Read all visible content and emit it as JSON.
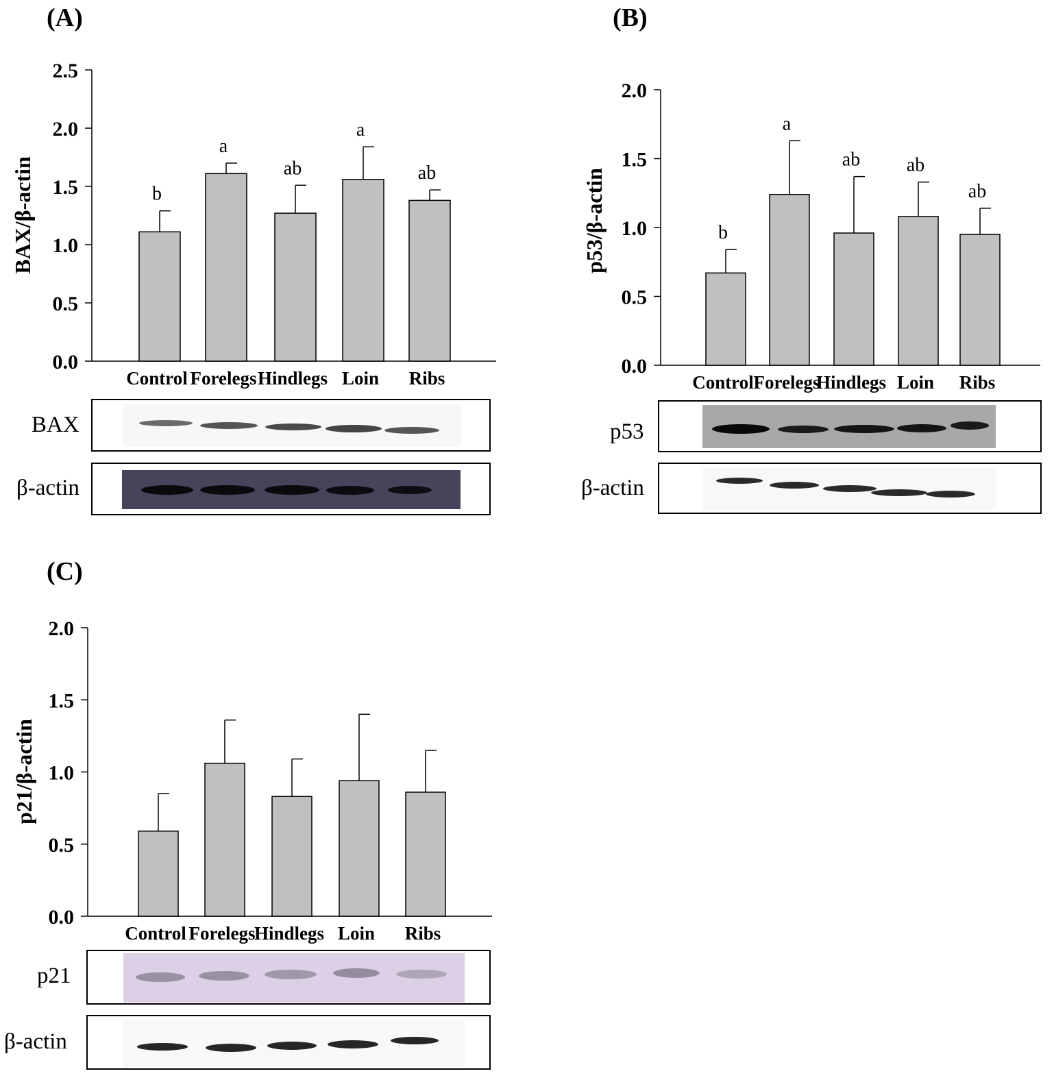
{
  "chart_data": [
    {
      "type": "bar",
      "panel_label": "(A)",
      "ylabel": "BAX/β-actin",
      "ylim": [
        0,
        2.5
      ],
      "yticks": [
        "0.0",
        "0.5",
        "1.0",
        "1.5",
        "2.0",
        "2.5"
      ],
      "categories": [
        "Control",
        "Forelegs",
        "Hindlegs",
        "Loin",
        "Ribs"
      ],
      "values": [
        1.11,
        1.61,
        1.27,
        1.56,
        1.38
      ],
      "errors": [
        0.18,
        0.09,
        0.24,
        0.28,
        0.09
      ],
      "letters": [
        "b",
        "a",
        "ab",
        "a",
        "ab"
      ],
      "blots": [
        {
          "label": "BAX"
        },
        {
          "label": "β-actin"
        }
      ]
    },
    {
      "type": "bar",
      "panel_label": "(B)",
      "ylabel": "p53/β-actin",
      "ylim": [
        0,
        2.0
      ],
      "yticks": [
        "0.0",
        "0.5",
        "1.0",
        "1.5",
        "2.0"
      ],
      "categories": [
        "Control",
        "Forelegs",
        "Hindlegs",
        "Loin",
        "Ribs"
      ],
      "values": [
        0.67,
        1.24,
        0.96,
        1.08,
        0.95
      ],
      "errors": [
        0.17,
        0.39,
        0.41,
        0.25,
        0.19
      ],
      "letters": [
        "b",
        "a",
        "ab",
        "ab",
        "ab"
      ],
      "blots": [
        {
          "label": "p53"
        },
        {
          "label": "β-actin"
        }
      ]
    },
    {
      "type": "bar",
      "panel_label": "(C)",
      "ylabel": "p21/β-actin",
      "ylim": [
        0,
        2.0
      ],
      "yticks": [
        "0.0",
        "0.5",
        "1.0",
        "1.5",
        "2.0"
      ],
      "categories": [
        "Control",
        "Forelegs",
        "Hindlegs",
        "Loin",
        "Ribs"
      ],
      "values": [
        0.59,
        1.06,
        0.83,
        0.94,
        0.86
      ],
      "errors": [
        0.26,
        0.3,
        0.26,
        0.46,
        0.29
      ],
      "letters": [],
      "blots": [
        {
          "label": "p21"
        },
        {
          "label": "β-actin"
        }
      ]
    }
  ],
  "colors": {
    "bar_fill": "#c0c0c0",
    "bar_stroke": "#000000"
  }
}
